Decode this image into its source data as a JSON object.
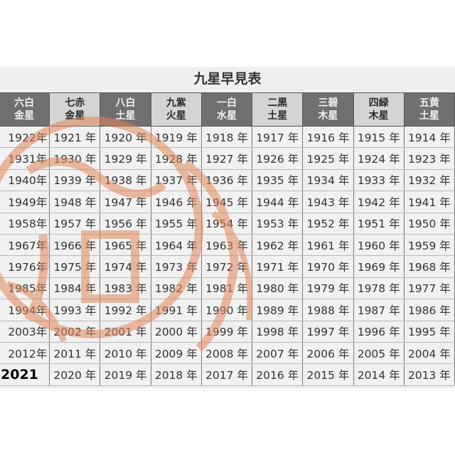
{
  "title": "九星早見表",
  "headers": [
    {
      "line1": "六白",
      "line2": "金星",
      "style": "dark"
    },
    {
      "line1": "七赤",
      "line2": "金星",
      "style": "light"
    },
    {
      "line1": "八白",
      "line2": "土星",
      "style": "dark"
    },
    {
      "line1": "九紫",
      "line2": "火星",
      "style": "light"
    },
    {
      "line1": "一白",
      "line2": "水星",
      "style": "dark"
    },
    {
      "line1": "二黒",
      "line2": "土星",
      "style": "light"
    },
    {
      "line1": "三碧",
      "line2": "木星",
      "style": "dark"
    },
    {
      "line1": "四緑",
      "line2": "木星",
      "style": "light"
    },
    {
      "line1": "五黄",
      "line2": "土星",
      "style": "dark"
    }
  ],
  "rows": [
    [
      "1922年",
      "1921 年",
      "1920 年",
      "1919 年",
      "1918 年",
      "1917 年",
      "1916 年",
      "1915 年",
      "1914 年"
    ],
    [
      "1931年",
      "1930 年",
      "1929 年",
      "1928 年",
      "1927 年",
      "1926 年",
      "1925 年",
      "1924 年",
      "1923 年"
    ],
    [
      "1940年",
      "1939 年",
      "1938 年",
      "1937 年",
      "1936 年",
      "1935 年",
      "1934 年",
      "1933 年",
      "1932 年"
    ],
    [
      "1949年",
      "1948 年",
      "1947 年",
      "1946 年",
      "1945 年",
      "1944 年",
      "1943 年",
      "1942 年",
      "1941 年"
    ],
    [
      "1958年",
      "1957 年",
      "1956 年",
      "1955 年",
      "1954 年",
      "1953 年",
      "1952 年",
      "1951 年",
      "1950 年"
    ],
    [
      "1967年",
      "1966 年",
      "1965 年",
      "1964 年",
      "1963 年",
      "1962 年",
      "1961 年",
      "1960 年",
      "1959 年"
    ],
    [
      "1976年",
      "1975 年",
      "1974 年",
      "1973 年",
      "1972 年",
      "1971 年",
      "1970 年",
      "1969 年",
      "1968 年"
    ],
    [
      "1985年",
      "1984 年",
      "1983 年",
      "1982 年",
      "1981 年",
      "1980 年",
      "1979 年",
      "1978 年",
      "1977 年"
    ],
    [
      "1994年",
      "1993 年",
      "1992 年",
      "1991 年",
      "1990 年",
      "1989 年",
      "1988 年",
      "1987 年",
      "1986 年"
    ],
    [
      "2003年",
      "2002 年",
      "2001 年",
      "2000 年",
      "1999 年",
      "1998 年",
      "1997 年",
      "1996 年",
      "1995 年"
    ],
    [
      "2012年",
      "2011 年",
      "2010 年",
      "2009 年",
      "2008 年",
      "2007 年",
      "2006 年",
      "2005 年",
      "2004 年"
    ],
    [
      "2021",
      "2020 年",
      "2019 年",
      "2018 年",
      "2017 年",
      "2016 年",
      "2015 年",
      "2014 年",
      "2013 年"
    ]
  ],
  "highlight_year": "2021",
  "colors": {
    "header_dark": "#707070",
    "header_light": "#d4d4d4",
    "stamp": "#e0865a"
  }
}
